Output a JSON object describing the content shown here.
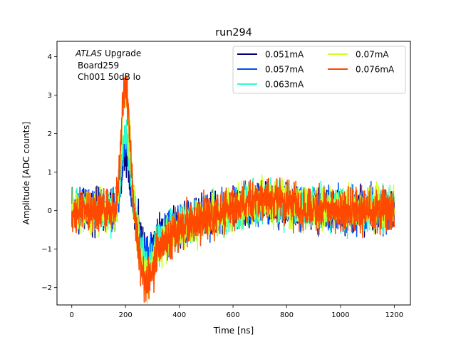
{
  "chart_data": {
    "type": "line",
    "title": "run294",
    "xlabel": "Time [ns]",
    "ylabel": "Amplitude [ADC counts]",
    "xlim": [
      -55,
      1260
    ],
    "ylim": [
      -2.45,
      4.4
    ],
    "xticks": [
      0,
      200,
      400,
      600,
      800,
      1000,
      1200
    ],
    "yticks": [
      -2,
      -1,
      0,
      1,
      2,
      3,
      4
    ],
    "grid": false,
    "legend": {
      "placement": "top-right",
      "columns": 2
    },
    "annotation": {
      "line1_italic": "ATLAS",
      "line1_rest": " Upgrade",
      "line2": "Board259",
      "line3": "Ch001 50dB lo"
    },
    "series": [
      {
        "name": "0.051mA",
        "color": "#00007f",
        "noise": 0.26,
        "scale": 0.62,
        "x": [
          0,
          100,
          160,
          175,
          185,
          195,
          205,
          215,
          225,
          235,
          245,
          255,
          265,
          275,
          285,
          295,
          310,
          330,
          350,
          400,
          450,
          500,
          550,
          600,
          650,
          700,
          750,
          800,
          850,
          900,
          1000,
          1100,
          1200
        ],
        "y": [
          0,
          0,
          0.05,
          0.5,
          1.4,
          2.3,
          2.2,
          1.4,
          0.6,
          -0.05,
          -0.6,
          -1.05,
          -1.4,
          -1.62,
          -1.6,
          -1.45,
          -1.2,
          -0.95,
          -0.72,
          -0.48,
          -0.32,
          -0.2,
          -0.08,
          0.05,
          0.15,
          0.25,
          0.25,
          0.18,
          0.1,
          0.05,
          0.0,
          0.0,
          0.0
        ]
      },
      {
        "name": "0.057mA",
        "color": "#004cff",
        "noise": 0.27,
        "scale": 0.75,
        "x": [
          0,
          100,
          160,
          175,
          185,
          195,
          205,
          215,
          225,
          235,
          245,
          255,
          265,
          275,
          285,
          295,
          310,
          330,
          350,
          400,
          450,
          500,
          550,
          600,
          650,
          700,
          750,
          800,
          850,
          900,
          1000,
          1100,
          1200
        ],
        "y": [
          0,
          0,
          0.05,
          0.5,
          1.4,
          2.3,
          2.2,
          1.4,
          0.6,
          -0.05,
          -0.6,
          -1.05,
          -1.4,
          -1.62,
          -1.6,
          -1.45,
          -1.2,
          -0.95,
          -0.72,
          -0.48,
          -0.32,
          -0.2,
          -0.08,
          0.05,
          0.15,
          0.25,
          0.25,
          0.18,
          0.1,
          0.05,
          0.0,
          0.0,
          0.0
        ]
      },
      {
        "name": "0.063mA",
        "color": "#29ffce",
        "noise": 0.27,
        "scale": 0.88,
        "x": [
          0,
          100,
          160,
          175,
          185,
          195,
          205,
          215,
          225,
          235,
          245,
          255,
          265,
          275,
          285,
          295,
          310,
          330,
          350,
          400,
          450,
          500,
          550,
          600,
          650,
          700,
          750,
          800,
          850,
          900,
          1000,
          1100,
          1200
        ],
        "y": [
          0,
          0,
          0.05,
          0.5,
          1.4,
          2.3,
          2.2,
          1.4,
          0.6,
          -0.05,
          -0.6,
          -1.05,
          -1.4,
          -1.62,
          -1.6,
          -1.45,
          -1.2,
          -0.95,
          -0.72,
          -0.48,
          -0.32,
          -0.2,
          -0.08,
          0.05,
          0.15,
          0.25,
          0.25,
          0.18,
          0.1,
          0.05,
          0.0,
          0.0,
          0.0
        ]
      },
      {
        "name": "0.07mA",
        "color": "#ceff29",
        "noise": 0.28,
        "scale": 1.0,
        "x": [
          0,
          100,
          160,
          175,
          185,
          195,
          205,
          215,
          225,
          235,
          245,
          255,
          265,
          275,
          285,
          295,
          310,
          330,
          350,
          400,
          450,
          500,
          550,
          600,
          650,
          700,
          750,
          800,
          850,
          900,
          1000,
          1100,
          1200
        ],
        "y": [
          0,
          0,
          0.05,
          0.6,
          1.9,
          3.1,
          3.0,
          1.9,
          0.7,
          -0.1,
          -0.7,
          -1.2,
          -1.6,
          -1.8,
          -1.75,
          -1.55,
          -1.25,
          -0.95,
          -0.72,
          -0.48,
          -0.32,
          -0.2,
          -0.08,
          0.05,
          0.15,
          0.25,
          0.25,
          0.18,
          0.1,
          0.05,
          0.0,
          0.0,
          0.0
        ]
      },
      {
        "name": "0.076mA",
        "color": "#ff4800",
        "noise": 0.28,
        "scale": 1.0,
        "x": [
          0,
          100,
          160,
          175,
          185,
          195,
          205,
          215,
          225,
          235,
          245,
          255,
          265,
          275,
          285,
          295,
          310,
          330,
          350,
          400,
          450,
          500,
          550,
          600,
          650,
          700,
          750,
          800,
          850,
          900,
          1000,
          1100,
          1200
        ],
        "y": [
          0,
          0,
          0.05,
          0.7,
          2.1,
          3.3,
          3.2,
          2.1,
          0.8,
          -0.1,
          -0.75,
          -1.3,
          -1.7,
          -1.9,
          -1.85,
          -1.6,
          -1.3,
          -1.0,
          -0.75,
          -0.5,
          -0.33,
          -0.2,
          -0.08,
          0.05,
          0.15,
          0.28,
          0.28,
          0.2,
          0.1,
          0.05,
          0.0,
          0.0,
          0.0
        ]
      }
    ]
  }
}
